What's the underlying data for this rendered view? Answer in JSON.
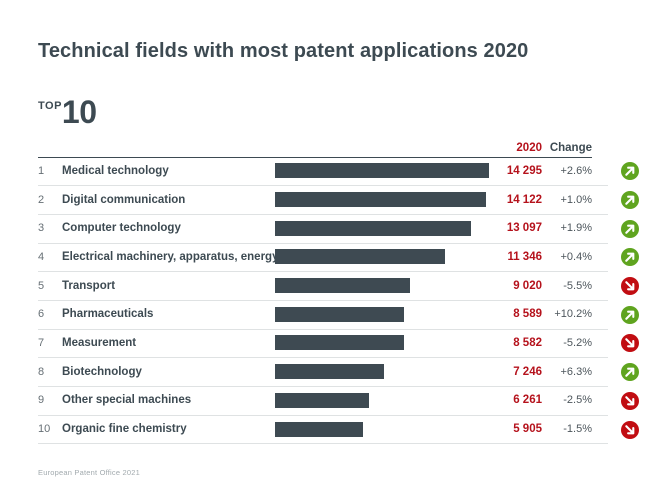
{
  "title": "Technical fields with most patent applications 2020",
  "top_badge": {
    "label": "TOP",
    "number": "10"
  },
  "columns": {
    "value": "2020",
    "change": "Change"
  },
  "footer": "European Patent Office 2021",
  "colors": {
    "slate": "#3d4a52",
    "bar": "#3e4a52",
    "red_text": "#b5121c",
    "green_icon": "#5fa41f",
    "red_icon": "#c10d12",
    "row_line": "#dfe2e3",
    "rank_grey": "#666f75",
    "change_grey": "#4d565c",
    "footer_grey": "#a2aaae"
  },
  "chart_data": {
    "type": "bar",
    "orientation": "horizontal",
    "title": "Technical fields with most patent applications 2020",
    "subtitle": "TOP 10",
    "ranks": [
      1,
      2,
      3,
      4,
      5,
      6,
      7,
      8,
      9,
      10
    ],
    "categories": [
      "Medical technology",
      "Digital communication",
      "Computer technology",
      "Electrical machinery, apparatus, energy",
      "Transport",
      "Pharmaceuticals",
      "Measurement",
      "Biotechnology",
      "Other special machines",
      "Organic fine chemistry"
    ],
    "values": [
      14295,
      14122,
      13097,
      11346,
      9020,
      8589,
      8582,
      7246,
      6261,
      5905
    ],
    "value_labels": [
      "14 295",
      "14 122",
      "13 097",
      "11 346",
      "9 020",
      "8 589",
      "8 582",
      "7 246",
      "6 261",
      "5 905"
    ],
    "changes": [
      "+2.6%",
      "+1.0%",
      "+1.9%",
      "+0.4%",
      "-5.5%",
      "+10.2%",
      "-5.2%",
      "+6.3%",
      "-2.5%",
      "-1.5%"
    ],
    "trends": [
      "up",
      "up",
      "up",
      "up",
      "down",
      "up",
      "down",
      "up",
      "down",
      "down"
    ],
    "value_column_header": "2020",
    "change_column_header": "Change",
    "xlim": [
      0,
      14295
    ],
    "grid": false,
    "legend": false,
    "source": "European Patent Office 2021"
  }
}
